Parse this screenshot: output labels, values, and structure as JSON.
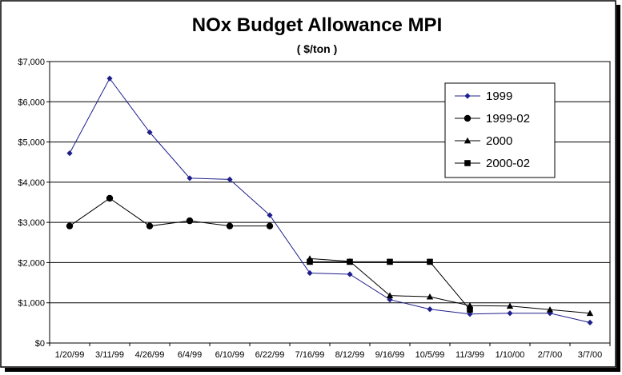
{
  "chart_data": {
    "type": "line",
    "title": "NOx Budget Allowance MPI",
    "subtitle": "( $/ton )",
    "xlabel": "",
    "ylabel": "",
    "categories": [
      "1/20/99",
      "3/11/99",
      "4/26/99",
      "6/4/99",
      "6/10/99",
      "6/22/99",
      "7/16/99",
      "8/12/99",
      "9/16/99",
      "10/5/99",
      "11/3/99",
      "1/10/00",
      "2/7/00",
      "3/7/00"
    ],
    "ylim": [
      0,
      7000
    ],
    "yticks": [
      0,
      1000,
      2000,
      3000,
      4000,
      5000,
      6000,
      7000
    ],
    "ytick_labels": [
      "$0",
      "$1,000",
      "$2,000",
      "$3,000",
      "$4,000",
      "$5,000",
      "$6,000",
      "$7,000"
    ],
    "grid": true,
    "legend_position": "top-right",
    "series": [
      {
        "name": "1999",
        "marker": "diamond",
        "color": "#1f1f8c",
        "points": [
          {
            "x": "1/20/99",
            "y": 4720
          },
          {
            "x": "3/11/99",
            "y": 6580
          },
          {
            "x": "4/26/99",
            "y": 5240
          },
          {
            "x": "6/4/99",
            "y": 4100
          },
          {
            "x": "6/10/99",
            "y": 4070
          },
          {
            "x": "6/22/99",
            "y": 3180
          },
          {
            "x": "7/16/99",
            "y": 1740
          },
          {
            "x": "8/12/99",
            "y": 1710
          },
          {
            "x": "9/16/99",
            "y": 1080
          },
          {
            "x": "10/5/99",
            "y": 840
          },
          {
            "x": "11/3/99",
            "y": 720
          },
          {
            "x": "1/10/00",
            "y": 740
          },
          {
            "x": "2/7/00",
            "y": 740
          },
          {
            "x": "3/7/00",
            "y": 510
          }
        ]
      },
      {
        "name": "1999-02",
        "marker": "circle",
        "color": "#000000",
        "points": [
          {
            "x": "1/20/99",
            "y": 2910
          },
          {
            "x": "3/11/99",
            "y": 3600
          },
          {
            "x": "4/26/99",
            "y": 2910
          },
          {
            "x": "6/4/99",
            "y": 3040
          },
          {
            "x": "6/10/99",
            "y": 2910
          },
          {
            "x": "6/22/99",
            "y": 2910
          }
        ]
      },
      {
        "name": "2000",
        "marker": "triangle",
        "color": "#000000",
        "points": [
          {
            "x": "7/16/99",
            "y": 2100
          },
          {
            "x": "8/12/99",
            "y": 2030
          },
          {
            "x": "9/16/99",
            "y": 1180
          },
          {
            "x": "10/5/99",
            "y": 1150
          },
          {
            "x": "11/3/99",
            "y": 930
          },
          {
            "x": "1/10/00",
            "y": 920
          },
          {
            "x": "2/7/00",
            "y": 830
          },
          {
            "x": "3/7/00",
            "y": 740
          }
        ]
      },
      {
        "name": "2000-02",
        "marker": "square",
        "color": "#000000",
        "points": [
          {
            "x": "7/16/99",
            "y": 2020
          },
          {
            "x": "8/12/99",
            "y": 2020
          },
          {
            "x": "9/16/99",
            "y": 2020
          },
          {
            "x": "10/5/99",
            "y": 2020
          },
          {
            "x": "11/3/99",
            "y": 830
          }
        ]
      }
    ]
  }
}
